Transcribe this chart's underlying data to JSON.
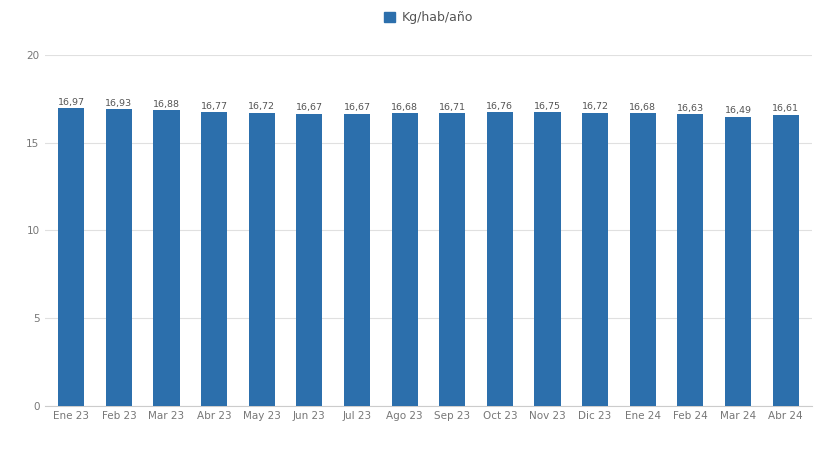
{
  "categories": [
    "Ene 23",
    "Feb 23",
    "Mar 23",
    "Abr 23",
    "May 23",
    "Jun 23",
    "Jul 23",
    "Ago 23",
    "Sep 23",
    "Oct 23",
    "Nov 23",
    "Dic 23",
    "Ene 24",
    "Feb 24",
    "Mar 24",
    "Abr 24"
  ],
  "values": [
    16.97,
    16.93,
    16.88,
    16.77,
    16.72,
    16.67,
    16.67,
    16.68,
    16.71,
    16.76,
    16.75,
    16.72,
    16.68,
    16.63,
    16.49,
    16.61
  ],
  "bar_color": "#2C6FAC",
  "background_color": "#ffffff",
  "legend_label": "Kg/hab/año",
  "legend_marker_color": "#2C6FAC",
  "ylim": [
    0,
    20
  ],
  "yticks": [
    0,
    5,
    10,
    15,
    20
  ],
  "label_fontsize": 6.8,
  "tick_fontsize": 7.5,
  "legend_fontsize": 9,
  "bar_label_color": "#555555",
  "axis_color": "#cccccc",
  "grid_color": "#e0e0e0"
}
